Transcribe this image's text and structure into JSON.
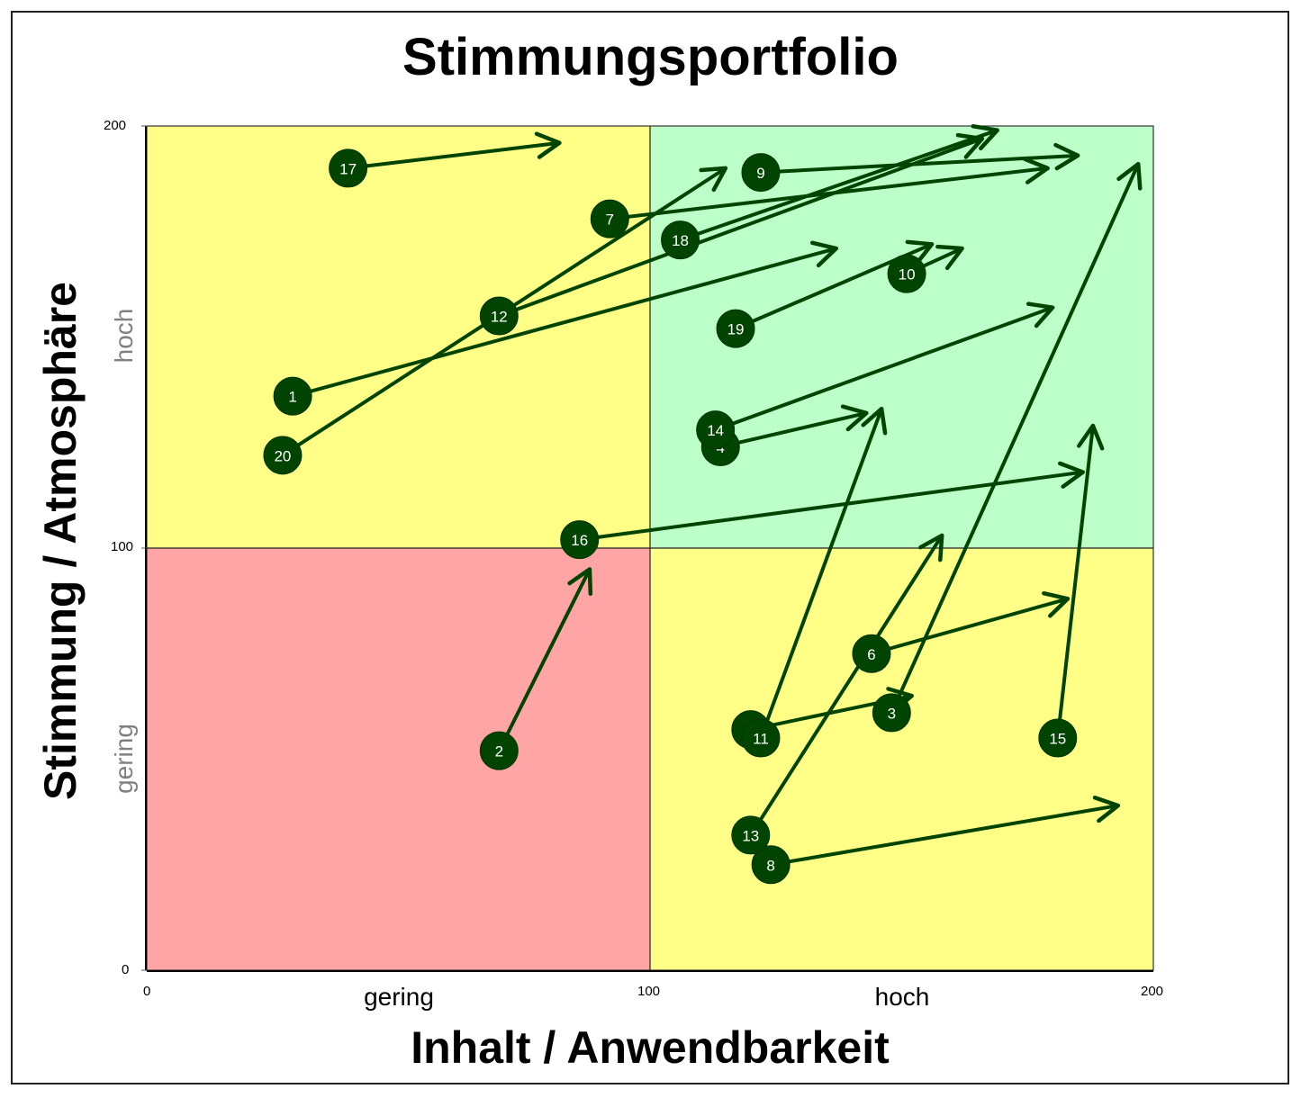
{
  "title": "Stimmungsportfolio",
  "axes": {
    "x_title": "Inhalt / Anwendbarkeit",
    "y_title": "Stimmung / Atmosphäre",
    "x_categories": {
      "low": "gering",
      "high": "hoch"
    },
    "y_categories": {
      "low": "gering",
      "high": "hoch"
    },
    "x_ticks": [
      "0",
      "100",
      "200"
    ],
    "y_ticks": [
      "0",
      "100",
      "200"
    ]
  },
  "colors": {
    "quadrant_low_low": "#ffa5a5",
    "quadrant_high_high": "#bcffc8",
    "quadrant_mixed": "#ffff88",
    "marker": "#004400",
    "arrow": "#004400"
  },
  "chart_data": {
    "type": "scatter",
    "title": "Stimmungsportfolio",
    "xlabel": "Inhalt / Anwendbarkeit",
    "ylabel": "Stimmung / Atmosphäre",
    "xlim": [
      0,
      200
    ],
    "ylim": [
      0,
      200
    ],
    "x_ticks": [
      0,
      100,
      200
    ],
    "y_ticks": [
      0,
      100,
      200
    ],
    "x_category_labels": [
      "gering",
      "hoch"
    ],
    "y_category_labels": [
      "gering",
      "hoch"
    ],
    "quadrant_divider": {
      "x": 100,
      "y": 100
    },
    "quadrants": [
      {
        "x": [
          0,
          100
        ],
        "y": [
          100,
          200
        ],
        "color": "#ffff88"
      },
      {
        "x": [
          100,
          200
        ],
        "y": [
          100,
          200
        ],
        "color": "#bcffc8"
      },
      {
        "x": [
          0,
          100
        ],
        "y": [
          0,
          100
        ],
        "color": "#ffa5a5"
      },
      {
        "x": [
          100,
          200
        ],
        "y": [
          0,
          100
        ],
        "color": "#ffff88"
      }
    ],
    "grid": false,
    "legend": null,
    "points": [
      {
        "id": "1",
        "x": 29,
        "y": 136,
        "arrow_to": [
          137,
          171
        ]
      },
      {
        "id": "2",
        "x": 70,
        "y": 52,
        "arrow_to": [
          88,
          95
        ]
      },
      {
        "id": "3",
        "x": 148,
        "y": 61,
        "arrow_to": [
          197,
          191
        ]
      },
      {
        "id": "4",
        "x": 114,
        "y": 124,
        "arrow_to": [
          143,
          132
        ]
      },
      {
        "id": "5",
        "x": 120,
        "y": 57,
        "arrow_to": [
          152,
          65
        ]
      },
      {
        "id": "6",
        "x": 144,
        "y": 75,
        "arrow_to": [
          183,
          88
        ]
      },
      {
        "id": "7",
        "x": 92,
        "y": 178,
        "arrow_to": [
          179,
          190
        ]
      },
      {
        "id": "8",
        "x": 124,
        "y": 25,
        "arrow_to": [
          193,
          39
        ]
      },
      {
        "id": "9",
        "x": 122,
        "y": 189,
        "arrow_to": [
          185,
          193
        ]
      },
      {
        "id": "10",
        "x": 151,
        "y": 165,
        "arrow_to": [
          162,
          171
        ]
      },
      {
        "id": "11",
        "x": 122,
        "y": 55,
        "arrow_to": [
          146,
          133
        ]
      },
      {
        "id": "12",
        "x": 70,
        "y": 155,
        "arrow_to": [
          166,
          197
        ]
      },
      {
        "id": "13",
        "x": 120,
        "y": 32,
        "arrow_to": [
          158,
          103
        ]
      },
      {
        "id": "14",
        "x": 113,
        "y": 128,
        "arrow_to": [
          180,
          157
        ]
      },
      {
        "id": "15",
        "x": 181,
        "y": 55,
        "arrow_to": [
          188,
          129
        ]
      },
      {
        "id": "16",
        "x": 86,
        "y": 102,
        "arrow_to": [
          186,
          118
        ]
      },
      {
        "id": "17",
        "x": 40,
        "y": 190,
        "arrow_to": [
          82,
          196
        ]
      },
      {
        "id": "18",
        "x": 106,
        "y": 173,
        "arrow_to": [
          169,
          199
        ]
      },
      {
        "id": "19",
        "x": 117,
        "y": 152,
        "arrow_to": [
          156,
          172
        ]
      },
      {
        "id": "20",
        "x": 27,
        "y": 122,
        "arrow_to": [
          115,
          190
        ]
      }
    ]
  }
}
